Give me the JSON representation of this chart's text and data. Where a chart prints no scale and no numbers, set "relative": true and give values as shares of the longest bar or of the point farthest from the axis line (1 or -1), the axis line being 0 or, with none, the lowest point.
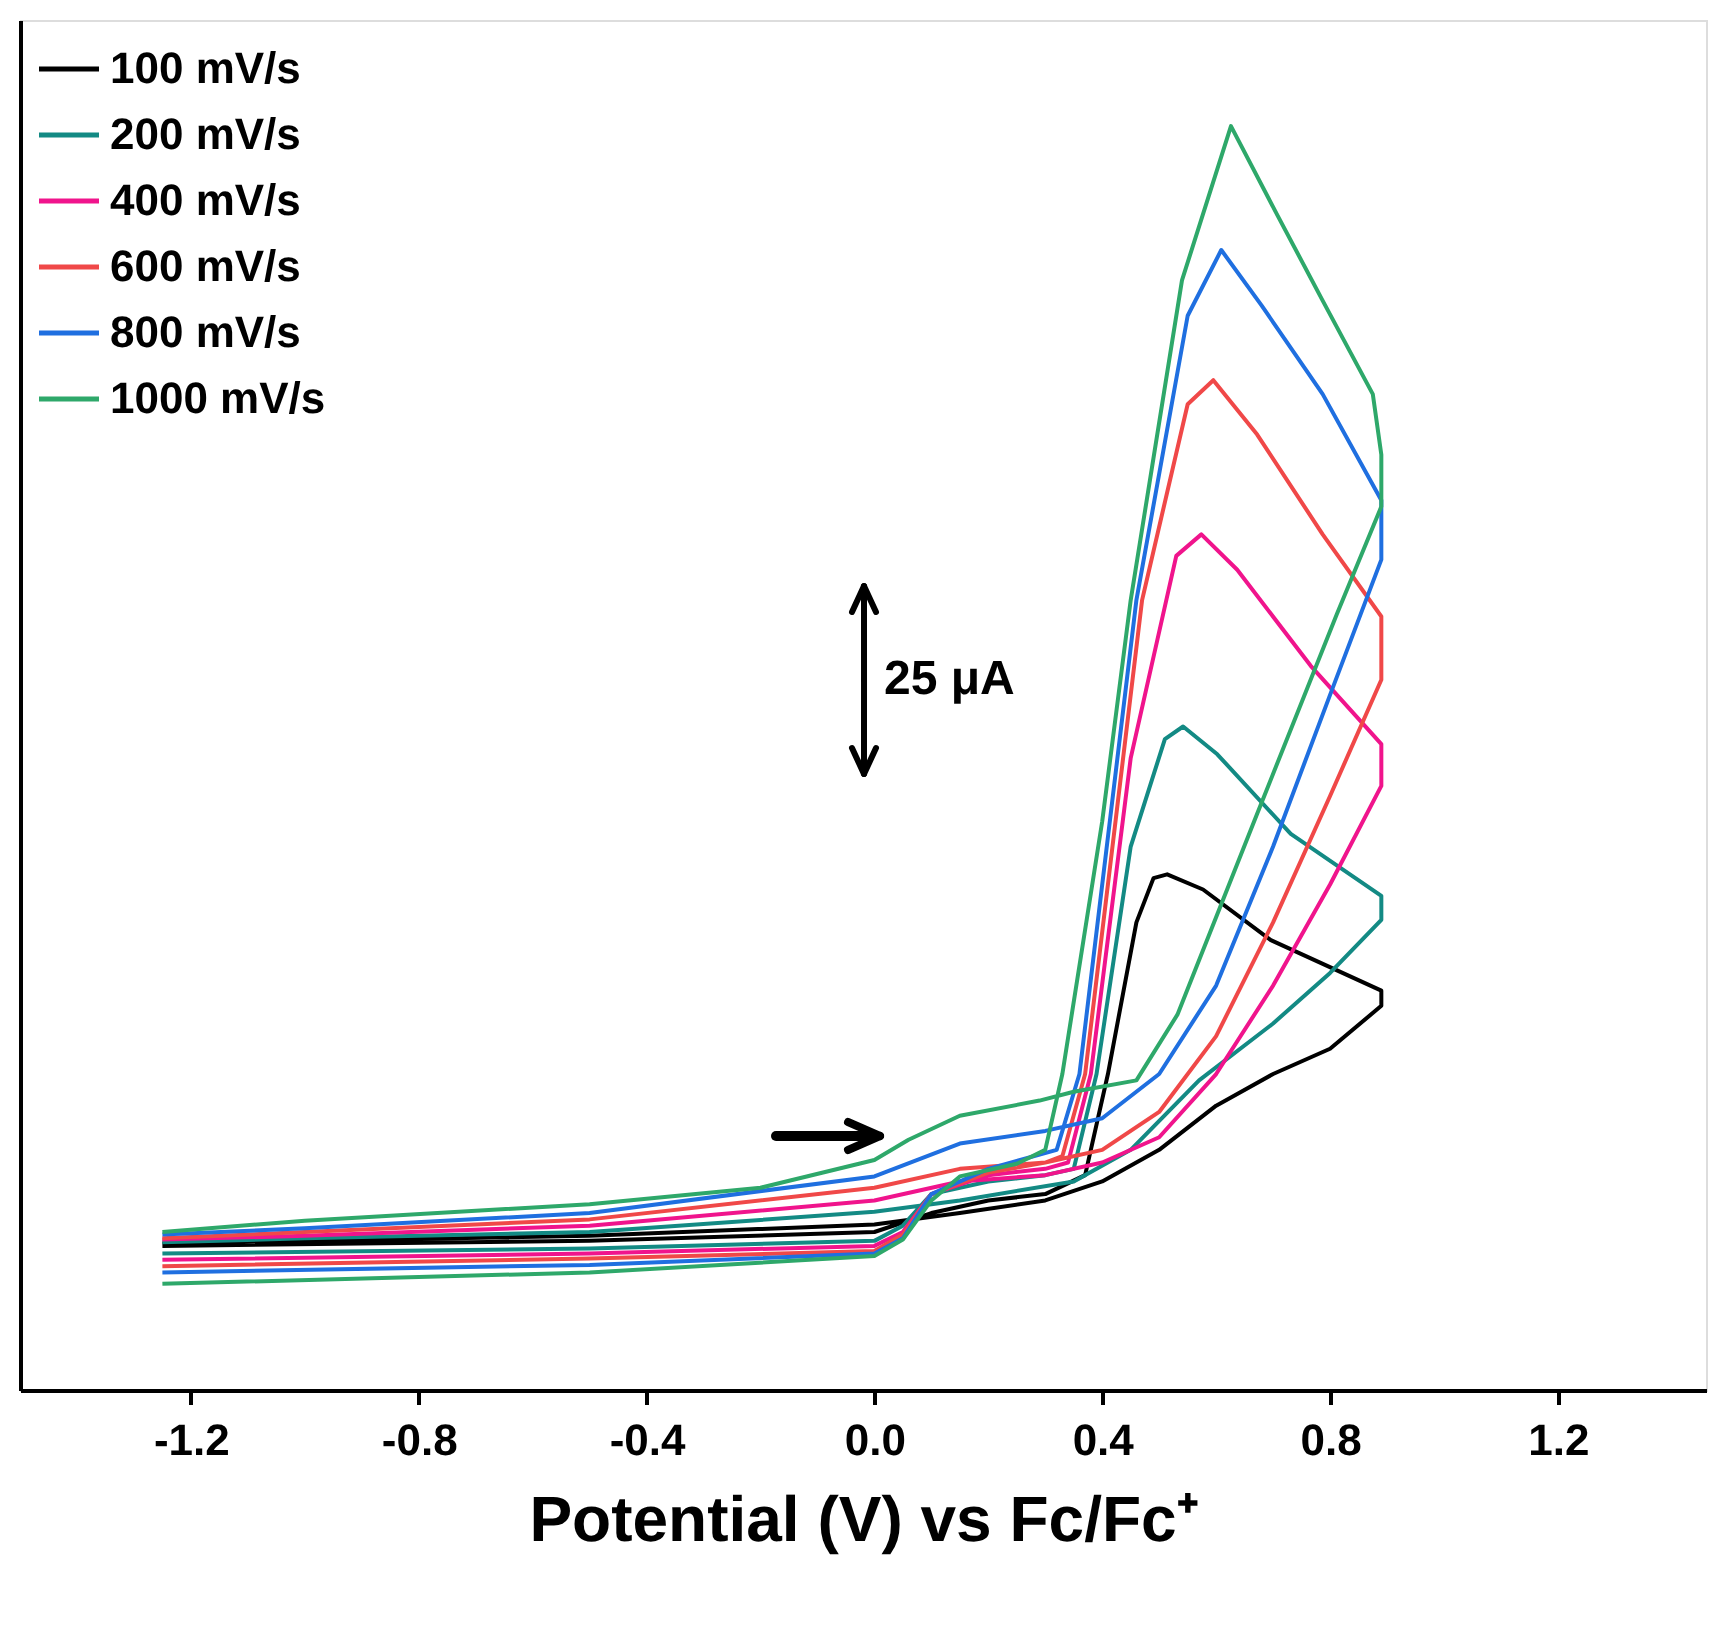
{
  "chart_data": {
    "type": "line",
    "relative": true,
    "xlabel": "Potential (V) vs Fc/Fc⁺",
    "xlim": [
      -1.5,
      1.46
    ],
    "xticks": [
      -1.2,
      -0.8,
      -0.4,
      {
        "value": 0,
        "label": "0.0"
      },
      0.4,
      0.8,
      1.2
    ],
    "legend": "top left",
    "grid": false,
    "marker": "none",
    "line_style": "solid",
    "annotations": [
      "25 μA"
    ],
    "series": [
      {
        "name": "100 mV/s",
        "color": "#000000",
        "x": [
          -1.25,
          -0.5,
          0,
          0.1,
          0.2,
          0.3,
          0.37,
          0.41,
          0.46,
          0.49,
          0.514,
          0.577,
          0.696,
          0.89,
          0.89,
          0.8,
          0.7,
          0.6,
          0.5,
          0.4,
          0.3,
          0.15,
          0,
          -0.5,
          -1.0,
          -1.25
        ],
        "values": [
          0.114,
          0.118,
          0.125,
          0.14,
          0.15,
          0.155,
          0.17,
          0.25,
          0.37,
          0.405,
          0.408,
          0.396,
          0.356,
          0.316,
          0.304,
          0.27,
          0.25,
          0.225,
          0.19,
          0.165,
          0.15,
          0.14,
          0.131,
          0.122,
          0.118,
          0.116
        ]
      },
      {
        "name": "200 mV/s",
        "color": "#138a84",
        "x": [
          -1.25,
          -0.5,
          0,
          0.05,
          0.1,
          0.2,
          0.3,
          0.35,
          0.39,
          0.45,
          0.51,
          0.542,
          0.602,
          0.731,
          0.89,
          0.89,
          0.8,
          0.7,
          0.57,
          0.45,
          0.35,
          0.15,
          0,
          -0.5,
          -1.0,
          -1.25
        ],
        "values": [
          0.108,
          0.112,
          0.118,
          0.13,
          0.155,
          0.165,
          0.17,
          0.175,
          0.25,
          0.43,
          0.515,
          0.525,
          0.503,
          0.44,
          0.391,
          0.372,
          0.33,
          0.29,
          0.245,
          0.19,
          0.165,
          0.15,
          0.141,
          0.125,
          0.12,
          0.117
        ]
      },
      {
        "name": "400 mV/s",
        "color": "#f0148c",
        "x": [
          -1.25,
          -0.5,
          0,
          0.05,
          0.1,
          0.2,
          0.3,
          0.34,
          0.38,
          0.45,
          0.53,
          0.574,
          0.637,
          0.766,
          0.89,
          0.89,
          0.8,
          0.7,
          0.6,
          0.5,
          0.4,
          0.3,
          0.15,
          0,
          -0.5,
          -1.0,
          -1.25
        ],
        "values": [
          0.103,
          0.108,
          0.114,
          0.125,
          0.155,
          0.17,
          0.175,
          0.18,
          0.25,
          0.5,
          0.66,
          0.677,
          0.649,
          0.573,
          0.511,
          0.478,
          0.4,
          0.32,
          0.25,
          0.2,
          0.18,
          0.17,
          0.165,
          0.15,
          0.13,
          0.122,
          0.119
        ]
      },
      {
        "name": "600 mV/s",
        "color": "#f04848",
        "x": [
          -1.25,
          -0.5,
          0,
          0.05,
          0.1,
          0.2,
          0.3,
          0.33,
          0.37,
          0.47,
          0.55,
          0.595,
          0.672,
          0.787,
          0.89,
          0.89,
          0.8,
          0.7,
          0.6,
          0.5,
          0.4,
          0.3,
          0.15,
          0,
          -0.5,
          -1.0,
          -1.25
        ],
        "values": [
          0.098,
          0.104,
          0.11,
          0.123,
          0.155,
          0.172,
          0.18,
          0.185,
          0.25,
          0.625,
          0.78,
          0.799,
          0.756,
          0.677,
          0.612,
          0.562,
          0.47,
          0.37,
          0.28,
          0.22,
          0.19,
          0.18,
          0.175,
          0.16,
          0.135,
          0.125,
          0.12
        ]
      },
      {
        "name": "800 mV/s",
        "color": "#1f6fe0",
        "x": [
          -1.25,
          -0.5,
          0,
          0.05,
          0.1,
          0.2,
          0.32,
          0.36,
          0.46,
          0.55,
          0.609,
          0.68,
          0.787,
          0.89,
          0.89,
          0.8,
          0.7,
          0.6,
          0.5,
          0.4,
          0.3,
          0.15,
          0,
          -0.5,
          -1.0,
          -1.25
        ],
        "values": [
          0.093,
          0.099,
          0.108,
          0.12,
          0.155,
          0.175,
          0.19,
          0.25,
          0.625,
          0.85,
          0.902,
          0.858,
          0.788,
          0.704,
          0.657,
          0.55,
          0.43,
          0.32,
          0.25,
          0.215,
          0.205,
          0.195,
          0.169,
          0.14,
          0.128,
          0.123
        ]
      },
      {
        "name": "1000 mV/s",
        "color": "#2ea86a",
        "x": [
          -1.25,
          -0.5,
          0,
          0.05,
          0.1,
          0.15,
          0.25,
          0.3,
          0.33,
          0.4,
          0.45,
          0.54,
          0.626,
          0.707,
          0.787,
          0.875,
          0.89,
          0.89,
          0.812,
          0.672,
          0.532,
          0.46,
          0.35,
          0.29,
          0.15,
          0.06,
          0,
          -0.2,
          -0.5,
          -1.0,
          -1.25
        ],
        "values": [
          0.084,
          0.093,
          0.106,
          0.119,
          0.15,
          0.169,
          0.179,
          0.19,
          0.25,
          0.45,
          0.625,
          0.878,
          1.0,
          0.93,
          0.862,
          0.788,
          0.74,
          0.699,
          0.614,
          0.456,
          0.297,
          0.245,
          0.236,
          0.229,
          0.217,
          0.198,
          0.182,
          0.16,
          0.147,
          0.134,
          0.125
        ]
      }
    ]
  }
}
